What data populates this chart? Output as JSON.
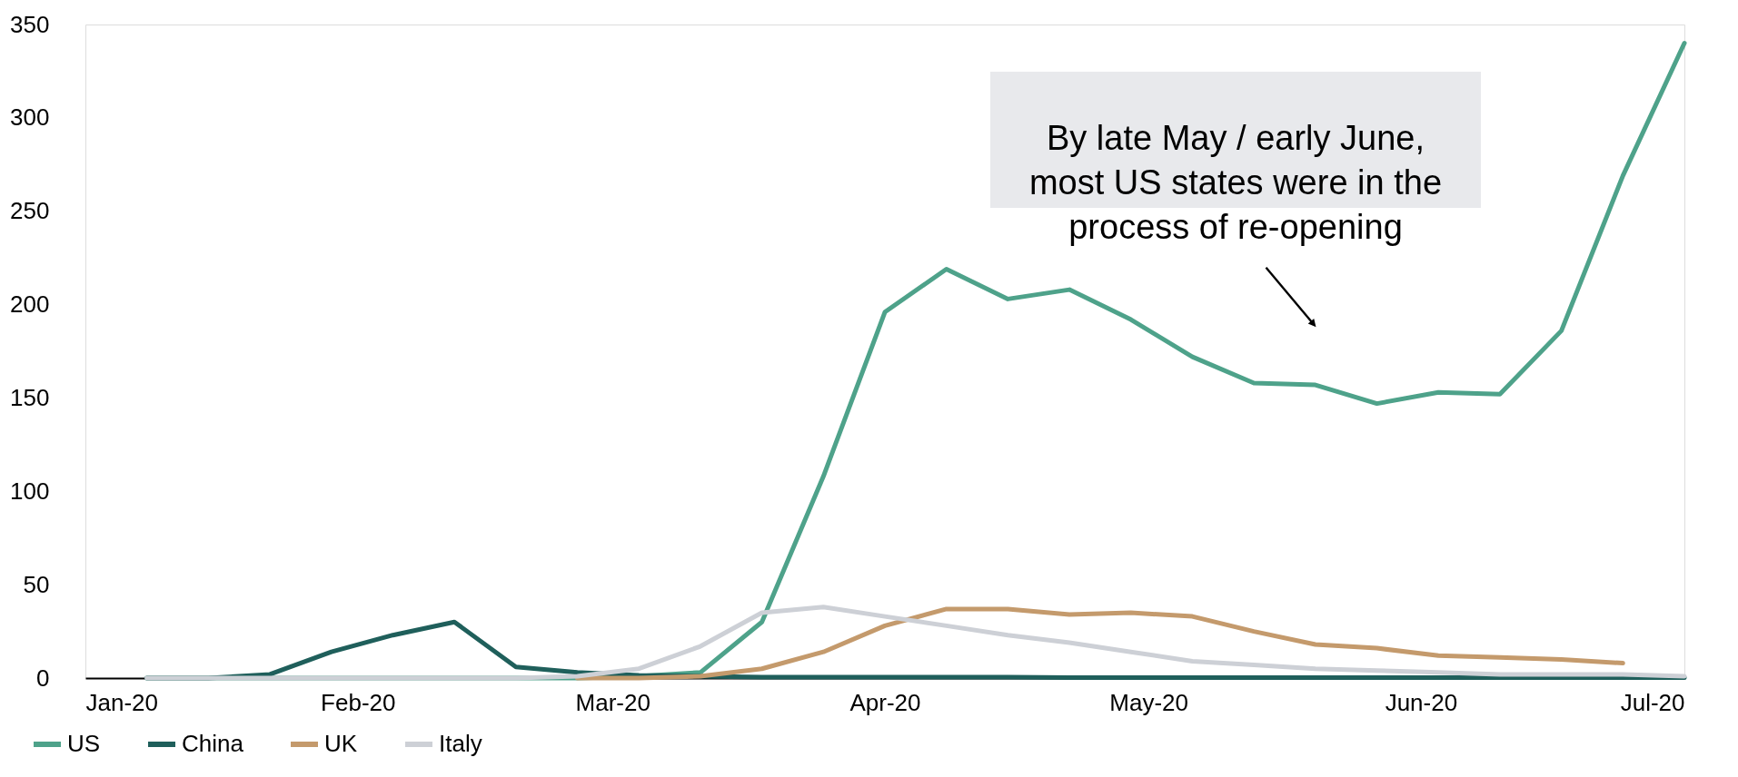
{
  "chart_data": {
    "type": "line",
    "x": [
      "2020-01-08",
      "2020-01-15",
      "2020-01-22",
      "2020-01-29",
      "2020-02-05",
      "2020-02-12",
      "2020-02-19",
      "2020-02-26",
      "2020-03-04",
      "2020-03-11",
      "2020-03-18",
      "2020-03-25",
      "2020-04-01",
      "2020-04-08",
      "2020-04-15",
      "2020-04-22",
      "2020-04-29",
      "2020-05-06",
      "2020-05-13",
      "2020-05-20",
      "2020-05-27",
      "2020-06-03",
      "2020-06-10",
      "2020-06-17",
      "2020-06-24",
      "2020-07-01"
    ],
    "series": [
      {
        "name": "US",
        "color": "#4ea28a",
        "values": [
          0,
          0,
          0,
          0,
          0,
          0,
          0,
          0,
          1,
          3,
          30,
          108,
          196,
          219,
          203,
          208,
          192,
          172,
          158,
          157,
          147,
          153,
          152,
          186,
          269,
          340
        ]
      },
      {
        "name": "China",
        "color": "#1f5f5b",
        "values": [
          0,
          0,
          2,
          14,
          23,
          30,
          6,
          3,
          1.5,
          1,
          0.5,
          0.5,
          0.5,
          0.5,
          0.5,
          0.3,
          0.3,
          0.3,
          0.3,
          0.3,
          0.3,
          0.2,
          0.2,
          0.2,
          0.2,
          0.2
        ]
      },
      {
        "name": "UK",
        "color": "#c49a6c",
        "values": [
          null,
          null,
          null,
          null,
          null,
          null,
          null,
          0,
          0,
          1,
          5,
          14,
          28,
          37,
          37,
          34,
          35,
          33,
          25,
          18,
          16,
          12,
          11,
          10,
          8,
          null
        ]
      },
      {
        "name": "Italy",
        "color": "#cdd0d6",
        "values": [
          0,
          0,
          0,
          0,
          0,
          0,
          0,
          1,
          5,
          17,
          35,
          38,
          33,
          28,
          23,
          19,
          14,
          9,
          7,
          5,
          4,
          3,
          2,
          2,
          2,
          1
        ]
      }
    ],
    "xlim": [
      "2020-01-01",
      "2020-07-01"
    ],
    "xticks": [
      {
        "value": "2020-01-01",
        "label": "Jan-20"
      },
      {
        "value": "2020-02-01",
        "label": "Feb-20"
      },
      {
        "value": "2020-03-01",
        "label": "Mar-20"
      },
      {
        "value": "2020-04-01",
        "label": "Apr-20"
      },
      {
        "value": "2020-05-01",
        "label": "May-20"
      },
      {
        "value": "2020-06-01",
        "label": "Jun-20"
      },
      {
        "value": "2020-07-01",
        "label": "Jul-20"
      }
    ],
    "ylim": [
      0,
      350
    ],
    "yticks": [
      0,
      50,
      100,
      150,
      200,
      250,
      300,
      350
    ],
    "legend": "bottom left",
    "annotations": [
      "By late May / early June,\nmost US states were in the\nprocess of re-opening"
    ]
  }
}
